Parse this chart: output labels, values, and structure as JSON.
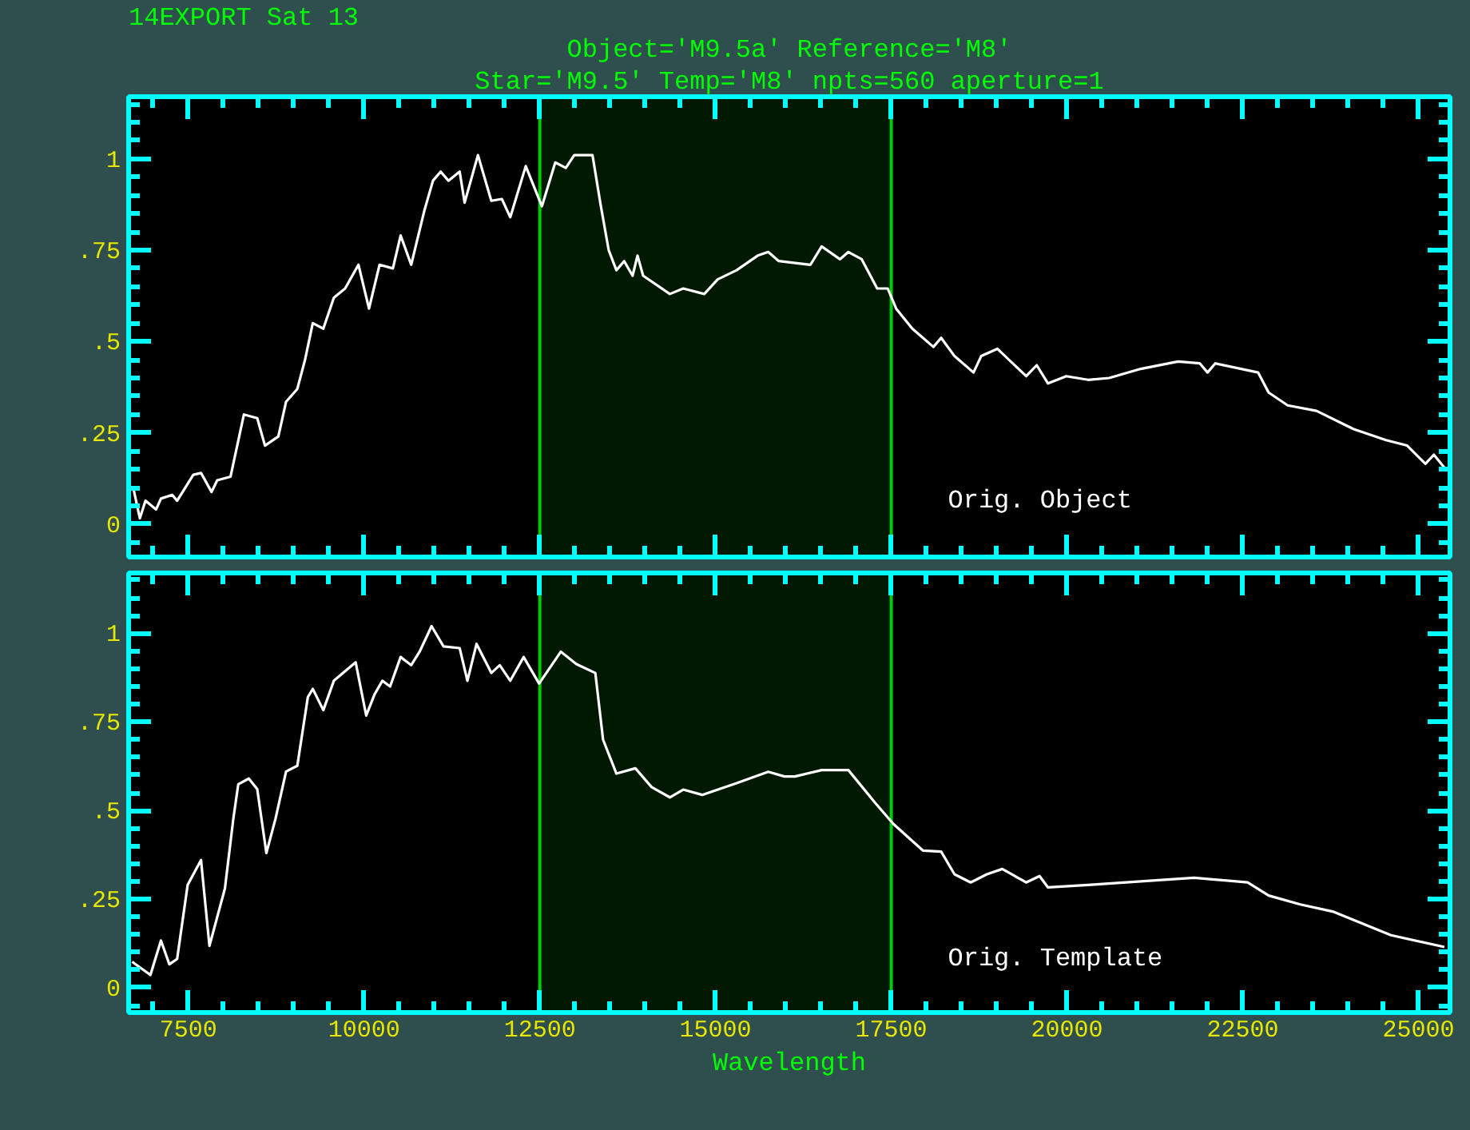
{
  "chart_data": [
    {
      "type": "line",
      "title": "Object='M9.5a' Reference='M8'",
      "subtitle": "Star='M9.5' Temp='M8' npts=560 aperture=1",
      "annotations": [
        "14EXPORT Sat 13"
      ],
      "tick_labels": "y",
      "xlim": [
        6650,
        25450
      ],
      "ylim": [
        -0.09,
        1.17
      ],
      "xticks": [
        7500,
        10000,
        12500,
        15000,
        17500,
        20000,
        22500,
        25000
      ],
      "yticks": [
        0,
        {
          "value": 0.25,
          "label": ".25"
        },
        {
          "value": 0.5,
          "label": ".5"
        },
        {
          "value": 0.75,
          "label": ".75"
        },
        1
      ],
      "bands": [
        {
          "axis": "x",
          "from": 12500,
          "to": 17500,
          "color": "#00cc00"
        }
      ],
      "series": [
        {
          "name": "Orig. Object",
          "color": "#ffffff",
          "x": [
            6720,
            6810,
            6890,
            7040,
            7110,
            7270,
            7340,
            7570,
            7680,
            7830,
            7910,
            8100,
            8290,
            8480,
            8590,
            8780,
            8890,
            9050,
            9160,
            9270,
            9420,
            9570,
            9730,
            9920,
            10070,
            10220,
            10410,
            10520,
            10670,
            10860,
            10980,
            11090,
            11200,
            11360,
            11430,
            11620,
            11810,
            11960,
            12080,
            12300,
            12530,
            12720,
            12870,
            12990,
            13250,
            13360,
            13480,
            13590,
            13700,
            13820,
            13890,
            13970,
            14350,
            14540,
            14840,
            15030,
            15300,
            15600,
            15750,
            15900,
            16350,
            16510,
            16770,
            16890,
            17080,
            17300,
            17450,
            17570,
            17800,
            18100,
            18210,
            18400,
            18670,
            18780,
            19010,
            19420,
            19570,
            19730,
            19990,
            20300,
            20600,
            21050,
            21580,
            21890,
            22000,
            22110,
            22720,
            22870,
            23140,
            23550,
            24080,
            24540,
            24840,
            25100,
            25220,
            25410
          ],
          "values": [
            0.096,
            0.016,
            0.064,
            0.04,
            0.07,
            0.08,
            0.064,
            0.135,
            0.14,
            0.088,
            0.12,
            0.13,
            0.3,
            0.29,
            0.215,
            0.24,
            0.335,
            0.37,
            0.45,
            0.55,
            0.535,
            0.62,
            0.645,
            0.71,
            0.59,
            0.71,
            0.7,
            0.79,
            0.71,
            0.86,
            0.94,
            0.965,
            0.94,
            0.965,
            0.88,
            1.01,
            0.885,
            0.89,
            0.84,
            0.98,
            0.87,
            0.99,
            0.975,
            1.01,
            1.01,
            0.88,
            0.75,
            0.695,
            0.72,
            0.68,
            0.735,
            0.68,
            0.63,
            0.645,
            0.63,
            0.67,
            0.695,
            0.735,
            0.745,
            0.72,
            0.71,
            0.76,
            0.725,
            0.745,
            0.725,
            0.645,
            0.645,
            0.59,
            0.535,
            0.485,
            0.51,
            0.46,
            0.415,
            0.46,
            0.48,
            0.405,
            0.435,
            0.385,
            0.405,
            0.395,
            0.4,
            0.425,
            0.445,
            0.44,
            0.415,
            0.44,
            0.415,
            0.36,
            0.325,
            0.31,
            0.26,
            0.23,
            0.215,
            0.165,
            0.19,
            0.145
          ]
        }
      ]
    },
    {
      "type": "line",
      "xlabel": "Wavelength",
      "xlim": [
        6650,
        25450
      ],
      "ylim": [
        -0.07,
        1.17
      ],
      "xticks": [
        7500,
        10000,
        12500,
        15000,
        17500,
        20000,
        22500,
        25000
      ],
      "yticks": [
        0,
        {
          "value": 0.25,
          "label": ".25"
        },
        {
          "value": 0.5,
          "label": ".5"
        },
        {
          "value": 0.75,
          "label": ".75"
        },
        1
      ],
      "bands": [
        {
          "axis": "x",
          "from": 12500,
          "to": 17500,
          "color": "#00cc00"
        }
      ],
      "series": [
        {
          "name": "Orig. Template",
          "color": "#ffffff",
          "x": [
            6700,
            6960,
            7110,
            7230,
            7340,
            7490,
            7680,
            7800,
            8020,
            8140,
            8210,
            8360,
            8480,
            8610,
            8740,
            8890,
            9050,
            9200,
            9270,
            9420,
            9570,
            9880,
            10030,
            10150,
            10260,
            10370,
            10520,
            10670,
            10790,
            10960,
            11130,
            11360,
            11470,
            11600,
            11810,
            11930,
            12080,
            12270,
            12490,
            12800,
            13020,
            13290,
            13400,
            13590,
            13860,
            14090,
            14350,
            14540,
            14810,
            15300,
            15750,
            15980,
            16130,
            16510,
            16890,
            17270,
            17530,
            17950,
            18210,
            18400,
            18630,
            18860,
            19080,
            19420,
            19610,
            19730,
            20300,
            21050,
            21810,
            22570,
            22870,
            23320,
            23780,
            24610,
            25370
          ],
          "values": [
            0.073,
            0.036,
            0.133,
            0.066,
            0.081,
            0.29,
            0.36,
            0.118,
            0.28,
            0.477,
            0.574,
            0.59,
            0.56,
            0.38,
            0.477,
            0.61,
            0.626,
            0.82,
            0.843,
            0.783,
            0.866,
            0.918,
            0.768,
            0.828,
            0.866,
            0.85,
            0.933,
            0.91,
            0.948,
            1.02,
            0.963,
            0.958,
            0.866,
            0.97,
            0.888,
            0.91,
            0.866,
            0.933,
            0.858,
            0.948,
            0.913,
            0.888,
            0.7,
            0.604,
            0.619,
            0.566,
            0.537,
            0.559,
            0.544,
            0.577,
            0.609,
            0.596,
            0.596,
            0.614,
            0.614,
            0.522,
            0.462,
            0.387,
            0.384,
            0.32,
            0.297,
            0.32,
            0.335,
            0.297,
            0.315,
            0.283,
            0.29,
            0.3,
            0.31,
            0.297,
            0.26,
            0.235,
            0.215,
            0.148,
            0.115
          ]
        }
      ]
    }
  ]
}
